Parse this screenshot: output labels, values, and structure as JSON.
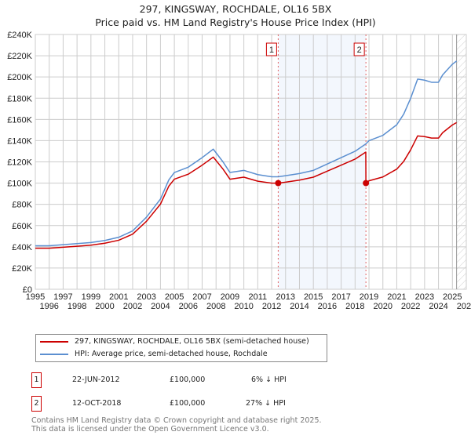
{
  "chart_data": {
    "type": "line",
    "title": "297, KINGSWAY, ROCHDALE, OL16 5BX",
    "subtitle": "Price paid vs. HM Land Registry's House Price Index (HPI)",
    "xlim": [
      1995,
      2026
    ],
    "ylim": [
      0,
      240000
    ],
    "x_ticks": [
      "1995",
      "1996",
      "1997",
      "1998",
      "1999",
      "2000",
      "2001",
      "2002",
      "2003",
      "2004",
      "2005",
      "2006",
      "2007",
      "2008",
      "2009",
      "2010",
      "2011",
      "2012",
      "2013",
      "2014",
      "2015",
      "2016",
      "2017",
      "2018",
      "2019",
      "2020",
      "2021",
      "2022",
      "2023",
      "2024",
      "2025",
      "2026"
    ],
    "y_ticks": [
      "£0",
      "£20K",
      "£40K",
      "£60K",
      "£80K",
      "£100K",
      "£120K",
      "£140K",
      "£160K",
      "£180K",
      "£200K",
      "£220K",
      "£240K"
    ],
    "grid": true,
    "series": [
      {
        "name": "297, KINGSWAY, ROCHDALE, OL16 5BX (semi-detached house)",
        "color": "#cc0000",
        "x": [
          1995,
          1996,
          1997,
          1998,
          1999,
          2000,
          2001,
          2002,
          2003,
          2004,
          2004.6,
          2005,
          2006,
          2007,
          2007.8,
          2008.5,
          2009,
          2010,
          2011,
          2012,
          2012.47,
          2013,
          2014,
          2015,
          2016,
          2017,
          2018,
          2018.77,
          2018.78,
          2019,
          2020,
          2021,
          2021.5,
          2022,
          2022.5,
          2023,
          2023.5,
          2024,
          2024.3,
          2025,
          2025.3
        ],
        "y": [
          38.7,
          38.7,
          39.6,
          40.5,
          41.5,
          43.4,
          46.2,
          51.9,
          64.1,
          80.2,
          97.1,
          103.7,
          108.4,
          116.9,
          124.5,
          113.2,
          103.7,
          105.6,
          101.8,
          100,
          100,
          100.9,
          102.8,
          105.6,
          111.3,
          116.9,
          122.6,
          129.2,
          100,
          102.2,
          105.8,
          113.2,
          120.5,
          131.4,
          144.5,
          143.8,
          142.4,
          142.4,
          147.5,
          154.8,
          157
        ]
      },
      {
        "name": "HPI: Average price, semi-detached house, Rochdale",
        "color": "#5b8fd0",
        "x": [
          1995,
          1996,
          1997,
          1998,
          1999,
          2000,
          2001,
          2002,
          2003,
          2004,
          2004.6,
          2005,
          2006,
          2007,
          2007.8,
          2008.5,
          2009,
          2010,
          2011,
          2012,
          2012.47,
          2013,
          2014,
          2015,
          2016,
          2017,
          2018,
          2018.78,
          2019,
          2020,
          2021,
          2021.5,
          2022,
          2022.5,
          2023,
          2023.5,
          2024,
          2024.3,
          2025,
          2025.3
        ],
        "y": [
          41,
          41,
          42,
          43,
          44,
          46,
          49,
          55,
          68,
          85,
          103,
          110,
          115,
          124,
          132,
          120,
          110,
          112,
          108,
          106,
          106,
          107,
          109,
          112,
          118,
          124,
          130,
          137,
          140,
          145,
          155,
          165,
          180,
          198,
          197,
          195,
          195,
          202,
          212,
          215
        ]
      }
    ],
    "y_units": "thousands GBP",
    "sales": [
      {
        "label": "1",
        "x": 2012.47,
        "y": 100,
        "date": "22-JUN-2012",
        "price": "£100,000",
        "hpi": "6% ↓ HPI"
      },
      {
        "label": "2",
        "x": 2018.78,
        "y": 100,
        "date": "12-OCT-2018",
        "price": "£100,000",
        "hpi": "27% ↓ HPI"
      }
    ],
    "forecast_start": 2025.3,
    "legend_position": "bottom"
  },
  "footer": {
    "line1": "Contains HM Land Registry data © Crown copyright and database right 2025.",
    "line2": "This data is licensed under the Open Government Licence v3.0."
  }
}
